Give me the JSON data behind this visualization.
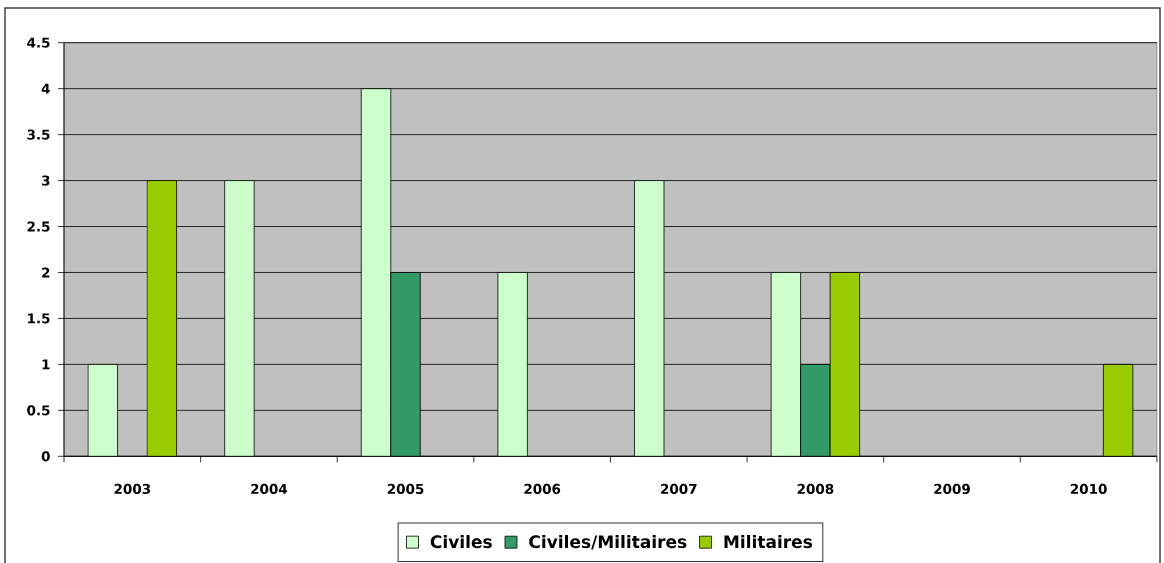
{
  "chart_data": {
    "type": "bar",
    "categories": [
      "2003",
      "2004",
      "2005",
      "2006",
      "2007",
      "2008",
      "2009",
      "2010"
    ],
    "series": [
      {
        "name": "Civiles",
        "color": "#ccffcc",
        "values": [
          1,
          3,
          4,
          2,
          3,
          2,
          null,
          null
        ]
      },
      {
        "name": "Civiles/Militaires",
        "color": "#339966",
        "values": [
          null,
          null,
          2,
          null,
          null,
          1,
          null,
          null
        ]
      },
      {
        "name": "Militaires",
        "color": "#99cc00",
        "values": [
          3,
          null,
          null,
          null,
          null,
          2,
          null,
          1
        ]
      }
    ],
    "ylim": [
      0,
      4.5
    ],
    "yticks": [
      0,
      0.5,
      1,
      1.5,
      2,
      2.5,
      3,
      3.5,
      4,
      4.5
    ],
    "grid": "y",
    "legend": "bottom"
  }
}
